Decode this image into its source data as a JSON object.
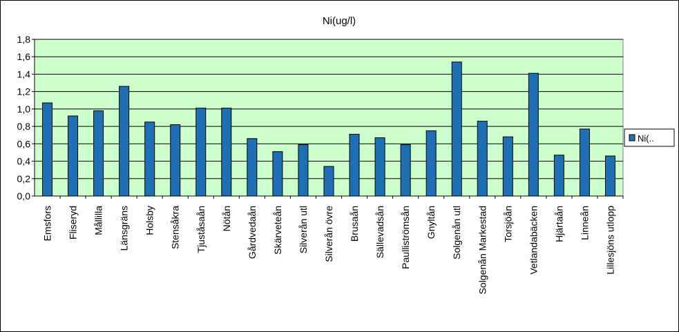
{
  "chart_data": {
    "type": "bar",
    "title": "Ni(ug/l)",
    "xlabel": "",
    "ylabel": "",
    "ylim": [
      0,
      1.8
    ],
    "yticks": [
      "0,0",
      "0,2",
      "0,4",
      "0,6",
      "0,8",
      "1,0",
      "1,2",
      "1,4",
      "1,6",
      "1,8"
    ],
    "ytick_values": [
      0,
      0.2,
      0.4,
      0.6,
      0.8,
      1.0,
      1.2,
      1.4,
      1.6,
      1.8
    ],
    "grid": true,
    "legend_position": "right",
    "categories": [
      "Emsfors",
      "Fliseryd",
      "Mållilla",
      "Länsgräns",
      "Holsby",
      "Stensåkra",
      "Tjuståsaån",
      "Nötån",
      "Gårdvedaån",
      "Skärveteån",
      "Silverån utl",
      "Silverån övre",
      "Brusaån",
      "Sällevadsån",
      "Paulliströmsån",
      "Gnyltån",
      "Solgenån utl",
      "Solgenån Markestad",
      "Torsjöån",
      "Vetlandabäcken",
      "Hjärtaån",
      "Linneån",
      "Lillesjöns utlopp"
    ],
    "series": [
      {
        "name": "Ni(..",
        "color": "#1f6fb5",
        "values": [
          1.07,
          0.92,
          0.98,
          1.26,
          0.85,
          0.82,
          1.01,
          1.01,
          0.66,
          0.51,
          0.59,
          0.34,
          0.71,
          0.67,
          0.59,
          0.75,
          1.54,
          0.86,
          0.68,
          1.41,
          0.47,
          0.77,
          0.46
        ]
      }
    ],
    "plot_background": "#ccffcc"
  }
}
